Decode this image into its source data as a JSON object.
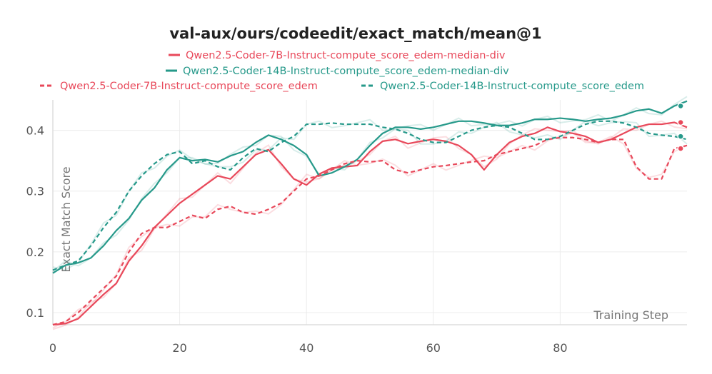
{
  "chart_data": {
    "type": "line",
    "title": "val-aux/ours/codeedit/exact_match/mean@1",
    "xlabel": "Training Step",
    "ylabel": "Exact Match Score",
    "xlim": [
      0,
      100
    ],
    "ylim": [
      0.08,
      0.45
    ],
    "xticks": [
      0,
      20,
      40,
      60,
      80
    ],
    "yticks": [
      0.1,
      0.2,
      0.3,
      0.4
    ],
    "series": [
      {
        "name": "Qwen2.5-Coder-7B-Instruct-compute_score_edem-median-div",
        "color": "#e8485a",
        "dash": "solid",
        "x": [
          0,
          2,
          4,
          6,
          8,
          10,
          12,
          14,
          16,
          18,
          20,
          22,
          24,
          26,
          28,
          30,
          32,
          34,
          36,
          38,
          40,
          42,
          44,
          46,
          48,
          50,
          52,
          54,
          56,
          58,
          60,
          62,
          64,
          66,
          68,
          70,
          72,
          74,
          76,
          78,
          80,
          82,
          84,
          86,
          88,
          90,
          92,
          94,
          96,
          98,
          100
        ],
        "y": [
          0.08,
          0.082,
          0.09,
          0.11,
          0.13,
          0.148,
          0.185,
          0.21,
          0.24,
          0.26,
          0.28,
          0.295,
          0.31,
          0.325,
          0.32,
          0.34,
          0.36,
          0.368,
          0.345,
          0.32,
          0.31,
          0.328,
          0.338,
          0.34,
          0.342,
          0.365,
          0.382,
          0.385,
          0.378,
          0.382,
          0.385,
          0.382,
          0.375,
          0.36,
          0.335,
          0.36,
          0.38,
          0.39,
          0.395,
          0.405,
          0.398,
          0.395,
          0.39,
          0.38,
          0.385,
          0.395,
          0.405,
          0.41,
          0.41,
          0.413,
          0.405
        ]
      },
      {
        "name": "Qwen2.5-Coder-14B-Instruct-compute_score_edem-median-div",
        "color": "#26998a",
        "dash": "solid",
        "x": [
          0,
          2,
          4,
          6,
          8,
          10,
          12,
          14,
          16,
          18,
          20,
          22,
          24,
          26,
          28,
          30,
          32,
          34,
          36,
          38,
          40,
          42,
          44,
          46,
          48,
          50,
          52,
          54,
          56,
          58,
          60,
          62,
          64,
          66,
          68,
          70,
          72,
          74,
          76,
          78,
          80,
          82,
          84,
          86,
          88,
          90,
          92,
          94,
          96,
          98,
          100
        ],
        "y": [
          0.165,
          0.178,
          0.182,
          0.19,
          0.21,
          0.235,
          0.255,
          0.285,
          0.305,
          0.335,
          0.355,
          0.35,
          0.352,
          0.348,
          0.358,
          0.365,
          0.38,
          0.392,
          0.385,
          0.375,
          0.36,
          0.325,
          0.33,
          0.34,
          0.352,
          0.375,
          0.395,
          0.405,
          0.405,
          0.402,
          0.405,
          0.41,
          0.415,
          0.415,
          0.412,
          0.408,
          0.408,
          0.412,
          0.418,
          0.418,
          0.42,
          0.418,
          0.415,
          0.418,
          0.42,
          0.425,
          0.432,
          0.435,
          0.428,
          0.44,
          0.448
        ]
      },
      {
        "name": "Qwen2.5-Coder-7B-Instruct-compute_score_edem",
        "color": "#e8485a",
        "dash": "dashed",
        "x": [
          0,
          2,
          4,
          6,
          8,
          10,
          12,
          14,
          16,
          18,
          20,
          22,
          24,
          26,
          28,
          30,
          32,
          34,
          36,
          38,
          40,
          42,
          44,
          46,
          48,
          50,
          52,
          54,
          56,
          58,
          60,
          62,
          64,
          66,
          68,
          70,
          72,
          74,
          76,
          78,
          80,
          82,
          84,
          86,
          88,
          90,
          92,
          94,
          96,
          98,
          100
        ],
        "y": [
          0.08,
          0.085,
          0.1,
          0.12,
          0.14,
          0.16,
          0.2,
          0.23,
          0.24,
          0.24,
          0.25,
          0.26,
          0.255,
          0.27,
          0.275,
          0.265,
          0.262,
          0.27,
          0.28,
          0.3,
          0.32,
          0.325,
          0.335,
          0.345,
          0.35,
          0.348,
          0.35,
          0.335,
          0.33,
          0.335,
          0.34,
          0.342,
          0.345,
          0.348,
          0.35,
          0.36,
          0.365,
          0.37,
          0.375,
          0.385,
          0.388,
          0.388,
          0.385,
          0.38,
          0.385,
          0.385,
          0.34,
          0.32,
          0.32,
          0.37,
          0.375
        ]
      },
      {
        "name": "Qwen2.5-Coder-14B-Instruct-compute_score_edem",
        "color": "#26998a",
        "dash": "dashed",
        "x": [
          0,
          2,
          4,
          6,
          8,
          10,
          12,
          14,
          16,
          18,
          20,
          22,
          24,
          26,
          28,
          30,
          32,
          34,
          36,
          38,
          40,
          42,
          44,
          46,
          48,
          50,
          52,
          54,
          56,
          58,
          60,
          62,
          64,
          66,
          68,
          70,
          72,
          74,
          76,
          78,
          80,
          82,
          84,
          86,
          88,
          90,
          92,
          94,
          96,
          98,
          100
        ],
        "y": [
          0.17,
          0.178,
          0.185,
          0.21,
          0.24,
          0.265,
          0.3,
          0.325,
          0.345,
          0.36,
          0.365,
          0.345,
          0.35,
          0.34,
          0.335,
          0.355,
          0.37,
          0.365,
          0.38,
          0.39,
          0.41,
          0.41,
          0.412,
          0.41,
          0.41,
          0.41,
          0.405,
          0.402,
          0.395,
          0.385,
          0.38,
          0.38,
          0.39,
          0.4,
          0.405,
          0.408,
          0.405,
          0.395,
          0.385,
          0.385,
          0.39,
          0.4,
          0.41,
          0.415,
          0.415,
          0.412,
          0.405,
          0.395,
          0.392,
          0.39,
          0.385
        ]
      }
    ],
    "end_markers": [
      {
        "series": 0,
        "x": 99,
        "y": 0.413
      },
      {
        "series": 1,
        "x": 99,
        "y": 0.44
      },
      {
        "series": 2,
        "x": 99,
        "y": 0.37
      },
      {
        "series": 3,
        "x": 99,
        "y": 0.39
      }
    ]
  }
}
